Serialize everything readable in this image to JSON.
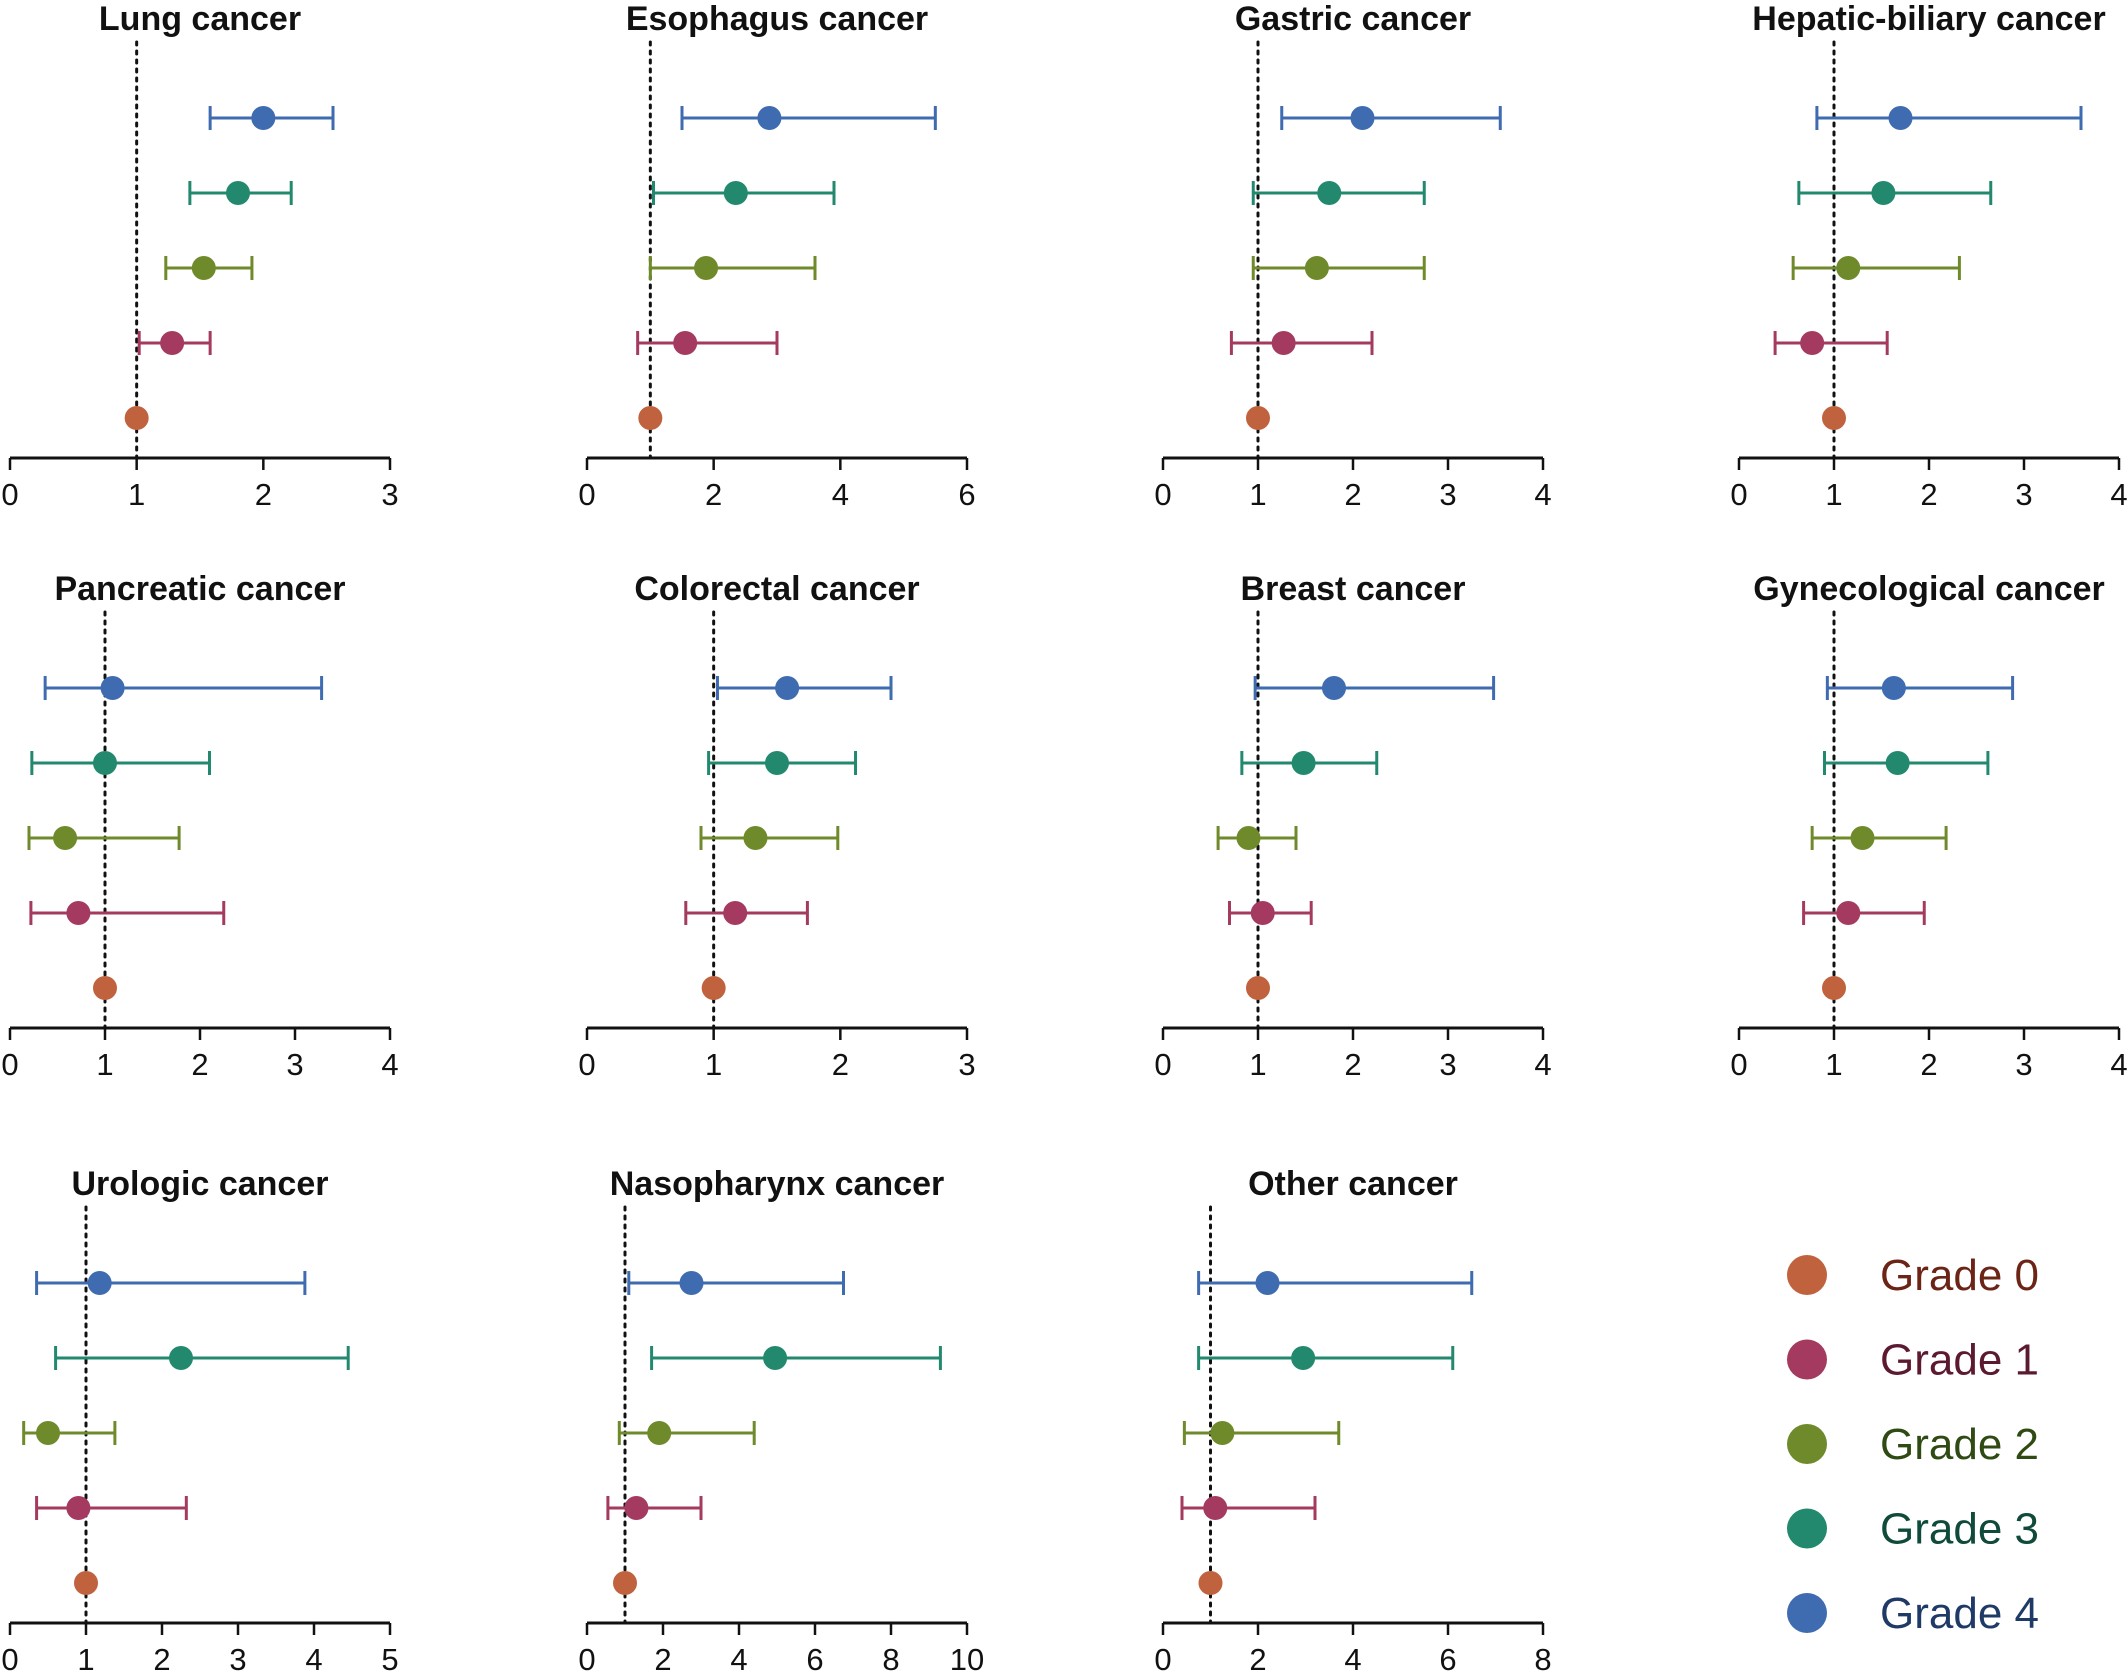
{
  "chart_data": {
    "type": "forest",
    "shared": {
      "legend_position": "bottom-right",
      "reference_line": 1,
      "reference_line_style": "dotted",
      "grid": false,
      "point_order_top_to_bottom": [
        "Grade 4",
        "Grade 3",
        "Grade 2",
        "Grade 1",
        "Grade 0"
      ]
    },
    "legend": [
      {
        "name": "Grade 0",
        "marker_color": "#c0623d",
        "text_color": "#6b2416"
      },
      {
        "name": "Grade 1",
        "marker_color": "#a43a5f",
        "text_color": "#5c1a32"
      },
      {
        "name": "Grade 2",
        "marker_color": "#6f8a2b",
        "text_color": "#2f4a12"
      },
      {
        "name": "Grade 3",
        "marker_color": "#23896e",
        "text_color": "#0f4a3a"
      },
      {
        "name": "Grade 4",
        "marker_color": "#3f6bb0",
        "text_color": "#1f3a66"
      }
    ],
    "panels": [
      {
        "title": "Lung cancer",
        "xlim": [
          0,
          3
        ],
        "xticks": [
          "0",
          "1",
          "2",
          "3"
        ],
        "series": [
          {
            "name": "Grade 4",
            "estimate": 2.0,
            "ci": [
              1.58,
              2.55
            ]
          },
          {
            "name": "Grade 3",
            "estimate": 1.8,
            "ci": [
              1.42,
              2.22
            ]
          },
          {
            "name": "Grade 2",
            "estimate": 1.53,
            "ci": [
              1.23,
              1.91
            ]
          },
          {
            "name": "Grade 1",
            "estimate": 1.28,
            "ci": [
              1.02,
              1.58
            ]
          },
          {
            "name": "Grade 0",
            "estimate": 1.0,
            "ci": null
          }
        ]
      },
      {
        "title": "Esophagus cancer",
        "xlim": [
          0,
          6
        ],
        "xticks": [
          "0",
          "2",
          "4",
          "6"
        ],
        "series": [
          {
            "name": "Grade 4",
            "estimate": 2.88,
            "ci": [
              1.5,
              5.5
            ]
          },
          {
            "name": "Grade 3",
            "estimate": 2.35,
            "ci": [
              1.05,
              3.9
            ]
          },
          {
            "name": "Grade 2",
            "estimate": 1.88,
            "ci": [
              1.0,
              3.6
            ]
          },
          {
            "name": "Grade 1",
            "estimate": 1.55,
            "ci": [
              0.8,
              3.0
            ]
          },
          {
            "name": "Grade 0",
            "estimate": 1.0,
            "ci": null
          }
        ]
      },
      {
        "title": "Gastric cancer",
        "xlim": [
          0,
          4
        ],
        "xticks": [
          "0",
          "1",
          "2",
          "3",
          "4"
        ],
        "series": [
          {
            "name": "Grade 4",
            "estimate": 2.1,
            "ci": [
              1.25,
              3.55
            ]
          },
          {
            "name": "Grade 3",
            "estimate": 1.75,
            "ci": [
              0.95,
              2.75
            ]
          },
          {
            "name": "Grade 2",
            "estimate": 1.62,
            "ci": [
              0.95,
              2.75
            ]
          },
          {
            "name": "Grade 1",
            "estimate": 1.27,
            "ci": [
              0.72,
              2.2
            ]
          },
          {
            "name": "Grade 0",
            "estimate": 1.0,
            "ci": null
          }
        ]
      },
      {
        "title": "Hepatic-biliary cancer",
        "xlim": [
          0,
          4
        ],
        "xticks": [
          "0",
          "1",
          "2",
          "3",
          "4"
        ],
        "series": [
          {
            "name": "Grade 4",
            "estimate": 1.7,
            "ci": [
              0.82,
              3.6
            ]
          },
          {
            "name": "Grade 3",
            "estimate": 1.52,
            "ci": [
              0.63,
              2.65
            ]
          },
          {
            "name": "Grade 2",
            "estimate": 1.15,
            "ci": [
              0.57,
              2.32
            ]
          },
          {
            "name": "Grade 1",
            "estimate": 0.77,
            "ci": [
              0.38,
              1.56
            ]
          },
          {
            "name": "Grade 0",
            "estimate": 1.0,
            "ci": null
          }
        ]
      },
      {
        "title": "Pancreatic cancer",
        "xlim": [
          0,
          4
        ],
        "xticks": [
          "0",
          "1",
          "2",
          "3",
          "4"
        ],
        "series": [
          {
            "name": "Grade 4",
            "estimate": 1.08,
            "ci": [
              0.37,
              3.28
            ]
          },
          {
            "name": "Grade 3",
            "estimate": 1.0,
            "ci": [
              0.23,
              2.1
            ]
          },
          {
            "name": "Grade 2",
            "estimate": 0.58,
            "ci": [
              0.2,
              1.78
            ]
          },
          {
            "name": "Grade 1",
            "estimate": 0.72,
            "ci": [
              0.22,
              2.25
            ]
          },
          {
            "name": "Grade 0",
            "estimate": 1.0,
            "ci": null
          }
        ]
      },
      {
        "title": "Colorectal cancer",
        "xlim": [
          0,
          3
        ],
        "xticks": [
          "0",
          "1",
          "2",
          "3"
        ],
        "series": [
          {
            "name": "Grade 4",
            "estimate": 1.58,
            "ci": [
              1.03,
              2.4
            ]
          },
          {
            "name": "Grade 3",
            "estimate": 1.5,
            "ci": [
              0.96,
              2.12
            ]
          },
          {
            "name": "Grade 2",
            "estimate": 1.33,
            "ci": [
              0.9,
              1.98
            ]
          },
          {
            "name": "Grade 1",
            "estimate": 1.17,
            "ci": [
              0.78,
              1.74
            ]
          },
          {
            "name": "Grade 0",
            "estimate": 1.0,
            "ci": null
          }
        ]
      },
      {
        "title": "Breast cancer",
        "xlim": [
          0,
          4
        ],
        "xticks": [
          "0",
          "1",
          "2",
          "3",
          "4"
        ],
        "series": [
          {
            "name": "Grade 4",
            "estimate": 1.8,
            "ci": [
              0.97,
              3.48
            ]
          },
          {
            "name": "Grade 3",
            "estimate": 1.48,
            "ci": [
              0.83,
              2.25
            ]
          },
          {
            "name": "Grade 2",
            "estimate": 0.9,
            "ci": [
              0.58,
              1.4
            ]
          },
          {
            "name": "Grade 1",
            "estimate": 1.05,
            "ci": [
              0.7,
              1.56
            ]
          },
          {
            "name": "Grade 0",
            "estimate": 1.0,
            "ci": null
          }
        ]
      },
      {
        "title": "Gynecological cancer",
        "xlim": [
          0,
          4
        ],
        "xticks": [
          "0",
          "1",
          "2",
          "3",
          "4"
        ],
        "series": [
          {
            "name": "Grade 4",
            "estimate": 1.63,
            "ci": [
              0.93,
              2.88
            ]
          },
          {
            "name": "Grade 3",
            "estimate": 1.67,
            "ci": [
              0.9,
              2.62
            ]
          },
          {
            "name": "Grade 2",
            "estimate": 1.3,
            "ci": [
              0.77,
              2.18
            ]
          },
          {
            "name": "Grade 1",
            "estimate": 1.15,
            "ci": [
              0.68,
              1.95
            ]
          },
          {
            "name": "Grade 0",
            "estimate": 1.0,
            "ci": null
          }
        ]
      },
      {
        "title": "Urologic cancer",
        "xlim": [
          0,
          5
        ],
        "xticks": [
          "0",
          "1",
          "2",
          "3",
          "4",
          "5"
        ],
        "series": [
          {
            "name": "Grade 4",
            "estimate": 1.18,
            "ci": [
              0.35,
              3.88
            ]
          },
          {
            "name": "Grade 3",
            "estimate": 2.25,
            "ci": [
              0.6,
              4.45
            ]
          },
          {
            "name": "Grade 2",
            "estimate": 0.5,
            "ci": [
              0.18,
              1.38
            ]
          },
          {
            "name": "Grade 1",
            "estimate": 0.9,
            "ci": [
              0.35,
              2.32
            ]
          },
          {
            "name": "Grade 0",
            "estimate": 1.0,
            "ci": null
          }
        ]
      },
      {
        "title": "Nasopharynx cancer",
        "xlim": [
          0,
          10
        ],
        "xticks": [
          "0",
          "2",
          "4",
          "6",
          "8",
          "10"
        ],
        "series": [
          {
            "name": "Grade 4",
            "estimate": 2.75,
            "ci": [
              1.1,
              6.75
            ]
          },
          {
            "name": "Grade 3",
            "estimate": 4.95,
            "ci": [
              1.7,
              9.3
            ]
          },
          {
            "name": "Grade 2",
            "estimate": 1.9,
            "ci": [
              0.85,
              4.4
            ]
          },
          {
            "name": "Grade 1",
            "estimate": 1.3,
            "ci": [
              0.55,
              3.0
            ]
          },
          {
            "name": "Grade 0",
            "estimate": 1.0,
            "ci": null
          }
        ]
      },
      {
        "title": "Other cancer",
        "xlim": [
          0,
          8
        ],
        "xticks": [
          "0",
          "2",
          "4",
          "6",
          "8"
        ],
        "series": [
          {
            "name": "Grade 4",
            "estimate": 2.2,
            "ci": [
              0.75,
              6.5
            ]
          },
          {
            "name": "Grade 3",
            "estimate": 2.95,
            "ci": [
              0.75,
              6.1
            ]
          },
          {
            "name": "Grade 2",
            "estimate": 1.25,
            "ci": [
              0.45,
              3.7
            ]
          },
          {
            "name": "Grade 1",
            "estimate": 1.1,
            "ci": [
              0.4,
              3.2
            ]
          },
          {
            "name": "Grade 0",
            "estimate": 1.0,
            "ci": null
          }
        ]
      }
    ]
  }
}
